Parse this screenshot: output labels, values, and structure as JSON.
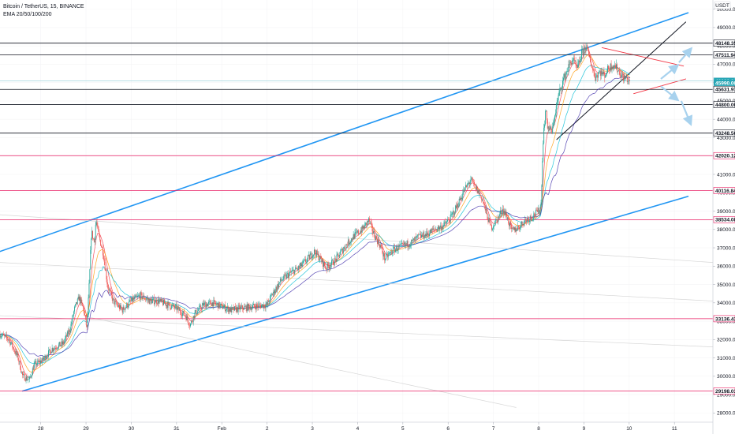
{
  "legend": {
    "symbol": "Bitcoin / TetherUS, 15, BINANCE",
    "indicator": "EMA 20/50/100/200"
  },
  "currency_badge": "USDT",
  "chart_data": {
    "type": "candlestick",
    "ylim": [
      27500,
      50500
    ],
    "y_ticks": [
      28000,
      29000,
      30000,
      31000,
      32000,
      33000,
      34000,
      35000,
      36000,
      37000,
      38000,
      39000,
      40000,
      41000,
      42000,
      43000,
      44000,
      45000,
      46000,
      47000,
      48000,
      49000,
      50000
    ],
    "x_ticks": [
      {
        "label": "28",
        "t": 0.5
      },
      {
        "label": "29",
        "t": 1.5
      },
      {
        "label": "30",
        "t": 2.5
      },
      {
        "label": "31",
        "t": 3.5
      },
      {
        "label": "Feb",
        "t": 4.5
      },
      {
        "label": "2",
        "t": 5.5
      },
      {
        "label": "3",
        "t": 6.5
      },
      {
        "label": "4",
        "t": 7.5
      },
      {
        "label": "5",
        "t": 8.5
      },
      {
        "label": "6",
        "t": 9.5
      },
      {
        "label": "7",
        "t": 10.5
      },
      {
        "label": "8",
        "t": 11.5
      },
      {
        "label": "9",
        "t": 12.5
      },
      {
        "label": "10",
        "t": 13.5
      },
      {
        "label": "11",
        "t": 14.5
      }
    ],
    "xlim": [
      -0.4,
      15.35
    ],
    "price_path": [
      [
        -0.4,
        32300
      ],
      [
        -0.2,
        32000
      ],
      [
        0.0,
        31000
      ],
      [
        0.1,
        30000
      ],
      [
        0.25,
        29800
      ],
      [
        0.35,
        30600
      ],
      [
        0.55,
        30900
      ],
      [
        0.75,
        31500
      ],
      [
        1.0,
        31800
      ],
      [
        1.15,
        32600
      ],
      [
        1.25,
        33700
      ],
      [
        1.35,
        34300
      ],
      [
        1.45,
        33600
      ],
      [
        1.52,
        32600
      ],
      [
        1.58,
        35500
      ],
      [
        1.62,
        37900
      ],
      [
        1.68,
        37300
      ],
      [
        1.72,
        38500
      ],
      [
        1.78,
        37700
      ],
      [
        1.88,
        36700
      ],
      [
        1.98,
        34900
      ],
      [
        2.1,
        34100
      ],
      [
        2.3,
        33600
      ],
      [
        2.5,
        34100
      ],
      [
        2.7,
        34400
      ],
      [
        2.9,
        34100
      ],
      [
        3.1,
        34100
      ],
      [
        3.3,
        33900
      ],
      [
        3.5,
        33700
      ],
      [
        3.7,
        33300
      ],
      [
        3.8,
        32800
      ],
      [
        3.9,
        33400
      ],
      [
        4.1,
        33900
      ],
      [
        4.3,
        34000
      ],
      [
        4.5,
        33800
      ],
      [
        4.7,
        33600
      ],
      [
        4.9,
        33700
      ],
      [
        5.2,
        33800
      ],
      [
        5.5,
        33900
      ],
      [
        5.6,
        34400
      ],
      [
        5.8,
        35200
      ],
      [
        6.0,
        35600
      ],
      [
        6.2,
        35900
      ],
      [
        6.4,
        36400
      ],
      [
        6.55,
        36800
      ],
      [
        6.7,
        36300
      ],
      [
        6.8,
        35900
      ],
      [
        7.0,
        36300
      ],
      [
        7.2,
        37000
      ],
      [
        7.4,
        37600
      ],
      [
        7.6,
        38000
      ],
      [
        7.75,
        38500
      ],
      [
        7.85,
        37800
      ],
      [
        8.0,
        37100
      ],
      [
        8.1,
        36400
      ],
      [
        8.3,
        36900
      ],
      [
        8.5,
        37100
      ],
      [
        8.7,
        37300
      ],
      [
        8.85,
        37600
      ],
      [
        9.0,
        37700
      ],
      [
        9.2,
        38000
      ],
      [
        9.4,
        38200
      ],
      [
        9.55,
        38600
      ],
      [
        9.7,
        39300
      ],
      [
        9.85,
        40100
      ],
      [
        10.0,
        40700
      ],
      [
        10.1,
        40300
      ],
      [
        10.25,
        39700
      ],
      [
        10.35,
        38800
      ],
      [
        10.45,
        38100
      ],
      [
        10.6,
        38600
      ],
      [
        10.7,
        39100
      ],
      [
        10.8,
        38700
      ],
      [
        10.9,
        37900
      ],
      [
        11.05,
        38100
      ],
      [
        11.2,
        38500
      ],
      [
        11.35,
        38700
      ],
      [
        11.5,
        39000
      ],
      [
        11.55,
        39300
      ],
      [
        11.6,
        42900
      ],
      [
        11.65,
        44500
      ],
      [
        11.7,
        43600
      ],
      [
        11.8,
        43300
      ],
      [
        11.85,
        44200
      ],
      [
        11.95,
        45400
      ],
      [
        12.05,
        46200
      ],
      [
        12.15,
        46800
      ],
      [
        12.25,
        47300
      ],
      [
        12.35,
        46700
      ],
      [
        12.45,
        47600
      ],
      [
        12.55,
        48000
      ],
      [
        12.65,
        47100
      ],
      [
        12.75,
        46300
      ],
      [
        12.85,
        46600
      ],
      [
        12.95,
        46400
      ],
      [
        13.05,
        46800
      ],
      [
        13.15,
        47000
      ],
      [
        13.25,
        46700
      ],
      [
        13.35,
        46300
      ],
      [
        13.45,
        46200
      ],
      [
        13.52,
        45900
      ]
    ],
    "ema_lines": [
      {
        "name": "EMA 20",
        "color": "#f23645",
        "lag": 0.12
      },
      {
        "name": "EMA 50",
        "color": "#ff9800",
        "lag": 0.3
      },
      {
        "name": "EMA 100",
        "color": "#00bcd4",
        "lag": 0.6
      },
      {
        "name": "EMA 200",
        "color": "#3c29a8",
        "lag": 1.2
      }
    ],
    "horizontal_levels": [
      {
        "value": 48148.35,
        "label": "48148.35",
        "color": "#131722",
        "badge_bg": "#ffffff",
        "badge_fg": "#131722"
      },
      {
        "value": 47511.94,
        "label": "47511.94",
        "color": "#131722",
        "badge_bg": "#ffffff",
        "badge_fg": "#131722"
      },
      {
        "value": 46093.94,
        "label": "46093.94",
        "color": "#9fd3dc",
        "badge_bg": "#26a6b5",
        "badge_fg": "#ffffff"
      },
      {
        "value": 45631.97,
        "label": "45631.97",
        "color": "#131722",
        "badge_bg": "#ffffff",
        "badge_fg": "#131722"
      },
      {
        "value": 44800.0,
        "label": "44800.00",
        "color": "#131722",
        "badge_bg": "#ffffff",
        "badge_fg": "#131722"
      },
      {
        "value": 43248.56,
        "label": "43248.56",
        "color": "#131722",
        "badge_bg": "#ffffff",
        "badge_fg": "#131722"
      },
      {
        "value": 42020.12,
        "label": "42020.12",
        "color": "#e91e63",
        "badge_bg": "#ffffff",
        "badge_fg": "#131722"
      },
      {
        "value": 40116.84,
        "label": "40116.84",
        "color": "#e91e63",
        "badge_bg": "#ffffff",
        "badge_fg": "#131722"
      },
      {
        "value": 38534.08,
        "label": "38534.08",
        "color": "#e91e63",
        "badge_bg": "#ffffff",
        "badge_fg": "#131722"
      },
      {
        "value": 33136.43,
        "label": "33136.43",
        "color": "#e91e63",
        "badge_bg": "#ffffff",
        "badge_fg": "#131722"
      },
      {
        "value": 29198.03,
        "label": "29198.03",
        "color": "#e91e63",
        "badge_bg": "#ffffff",
        "badge_fg": "#131722"
      }
    ],
    "last_price": {
      "value": 45990,
      "label": "45990.00",
      "badge_bg": "#26a6b5"
    },
    "trendlines": [
      {
        "name": "channel-upper",
        "color": "#2196f3",
        "width": 1.6,
        "points": [
          [
            -0.4,
            36800
          ],
          [
            14.8,
            49800
          ]
        ]
      },
      {
        "name": "channel-lower",
        "color": "#2196f3",
        "width": 1.6,
        "points": [
          [
            0.1,
            29200
          ],
          [
            14.8,
            39800
          ]
        ]
      },
      {
        "name": "uptrend-support",
        "color": "#131722",
        "width": 1.0,
        "points": [
          [
            11.9,
            42900
          ],
          [
            14.75,
            49300
          ]
        ]
      },
      {
        "name": "wedge-upper",
        "color": "#f23645",
        "width": 0.9,
        "points": [
          [
            12.9,
            47900
          ],
          [
            14.7,
            46900
          ]
        ]
      },
      {
        "name": "wedge-lower",
        "color": "#f23645",
        "width": 0.9,
        "points": [
          [
            13.6,
            45400
          ],
          [
            14.75,
            46200
          ]
        ]
      },
      {
        "name": "declining-1",
        "color": "#d6d6d6",
        "width": 0.7,
        "points": [
          [
            -0.4,
            38800
          ],
          [
            15.35,
            36200
          ]
        ]
      },
      {
        "name": "declining-2",
        "color": "#d6d6d6",
        "width": 0.7,
        "points": [
          [
            -0.4,
            36200
          ],
          [
            15.35,
            34100
          ]
        ]
      },
      {
        "name": "declining-3",
        "color": "#d6d6d6",
        "width": 0.7,
        "points": [
          [
            -0.4,
            33300
          ],
          [
            15.35,
            31600
          ]
        ]
      },
      {
        "name": "declining-4",
        "color": "#d6d6d6",
        "width": 0.7,
        "points": [
          [
            1.6,
            33200
          ],
          [
            11.0,
            28300
          ]
        ]
      }
    ],
    "arrows": [
      {
        "name": "arrow-up-1",
        "from": [
          14.2,
          46200
        ],
        "to": [
          14.55,
          46900
        ]
      },
      {
        "name": "arrow-up-2",
        "from": [
          14.6,
          47100
        ],
        "to": [
          14.85,
          47800
        ]
      },
      {
        "name": "arrow-down-1",
        "from": [
          14.2,
          45800
        ],
        "to": [
          14.55,
          45100
        ]
      },
      {
        "name": "arrow-down-2",
        "from": [
          14.65,
          45000
        ],
        "to": [
          14.85,
          43800
        ]
      }
    ]
  }
}
